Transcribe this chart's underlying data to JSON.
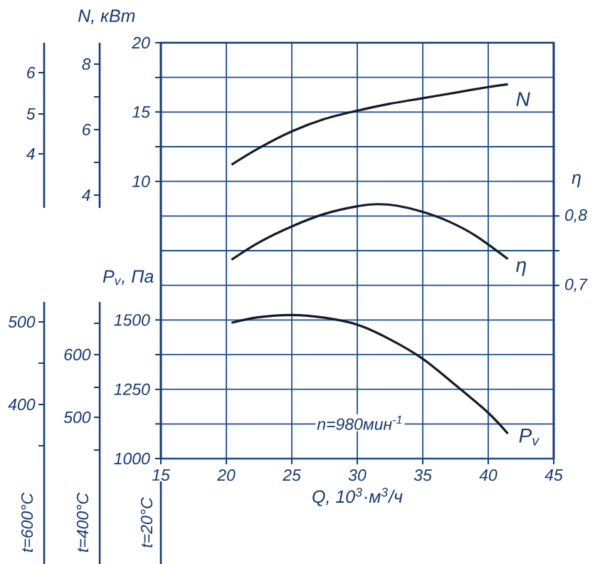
{
  "chart_data": [
    {
      "type": "line",
      "xlabel": "Q, 10$^{3}$·м$^{3}$/ч",
      "ylabel": "N, кВт",
      "y2label": "η",
      "y3label": "P$_{v}$, Па",
      "xlim": [
        15,
        45
      ],
      "xticks": [
        15,
        20,
        25,
        30,
        35,
        40,
        45
      ],
      "ylim": [
        -10,
        20
      ],
      "yticks": [
        10,
        {
          "value": 12.5,
          "label": null
        },
        15,
        {
          "value": 17.5,
          "label": null
        },
        20
      ],
      "y2lim": [
        0.45,
        1.05
      ],
      "y2ticks": [
        {
          "value": 0.7,
          "label": "0,7"
        },
        {
          "value": 0.75,
          "label": null
        },
        {
          "value": 0.8,
          "label": "0,8"
        }
      ],
      "y3lim": [
        1000,
        2500
      ],
      "y3ticks": [
        1000,
        {
          "value": 1125,
          "label": null
        },
        1250,
        {
          "value": 1375,
          "label": null
        },
        1500
      ],
      "grid": true,
      "annotations": [
        "n=980мин$^{-1}$",
        "t=20°C"
      ],
      "series": [
        {
          "name": "N",
          "axis": "y",
          "color": "#141a2a",
          "x": [
            20.4,
            22.5,
            25,
            27.5,
            30,
            32.5,
            35,
            37.5,
            40,
            41.5
          ],
          "values": [
            11.2,
            12.4,
            13.6,
            14.5,
            15.1,
            15.6,
            16.0,
            16.4,
            16.8,
            17.0
          ]
        },
        {
          "name": "η",
          "axis": "y2",
          "color": "#141a2a",
          "x": [
            20.4,
            22.5,
            25,
            27.5,
            30,
            31.5,
            33,
            35,
            37,
            39,
            41.5
          ],
          "values": [
            0.737,
            0.762,
            0.785,
            0.803,
            0.814,
            0.817,
            0.815,
            0.806,
            0.792,
            0.772,
            0.738
          ]
        },
        {
          "name": "P$_{v}$",
          "axis": "y3",
          "color": "#141a2a",
          "x": [
            20.4,
            22.5,
            25,
            27.5,
            30,
            32.5,
            35,
            37.5,
            40,
            41.5
          ],
          "values": [
            1490,
            1510,
            1518,
            1508,
            1483,
            1430,
            1360,
            1265,
            1165,
            1090
          ]
        }
      ]
    },
    {
      "type": "other",
      "annotations": [
        "6",
        "5",
        "4"
      ]
    },
    {
      "type": "other",
      "xlabel": "t=600°C",
      "annotations": [
        "500",
        "400"
      ]
    },
    {
      "type": "other",
      "annotations": [
        "8",
        "6",
        "4"
      ]
    },
    {
      "type": "other",
      "xlabel": "t=400°C",
      "annotations": [
        "600",
        "500"
      ]
    }
  ]
}
